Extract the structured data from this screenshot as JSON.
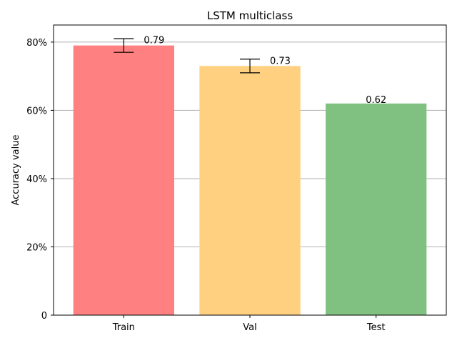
{
  "chart_data": {
    "type": "bar",
    "title": "LSTM multiclass",
    "xlabel": "",
    "ylabel": "Accuracy value",
    "categories": [
      "Train",
      "Val",
      "Test"
    ],
    "values": [
      0.79,
      0.73,
      0.62
    ],
    "value_labels": [
      "0.79",
      "0.73",
      "0.62"
    ],
    "errors": [
      0.02,
      0.02,
      null
    ],
    "colors": [
      "#ff8080",
      "#ffd080",
      "#80c080"
    ],
    "ylim": [
      0,
      0.85
    ],
    "yticks": [
      0,
      0.2,
      0.4,
      0.6,
      0.8
    ],
    "ytick_labels": [
      "0",
      "20%",
      "40%",
      "60%",
      "80%"
    ],
    "grid": "horizontal",
    "legend": "none"
  }
}
